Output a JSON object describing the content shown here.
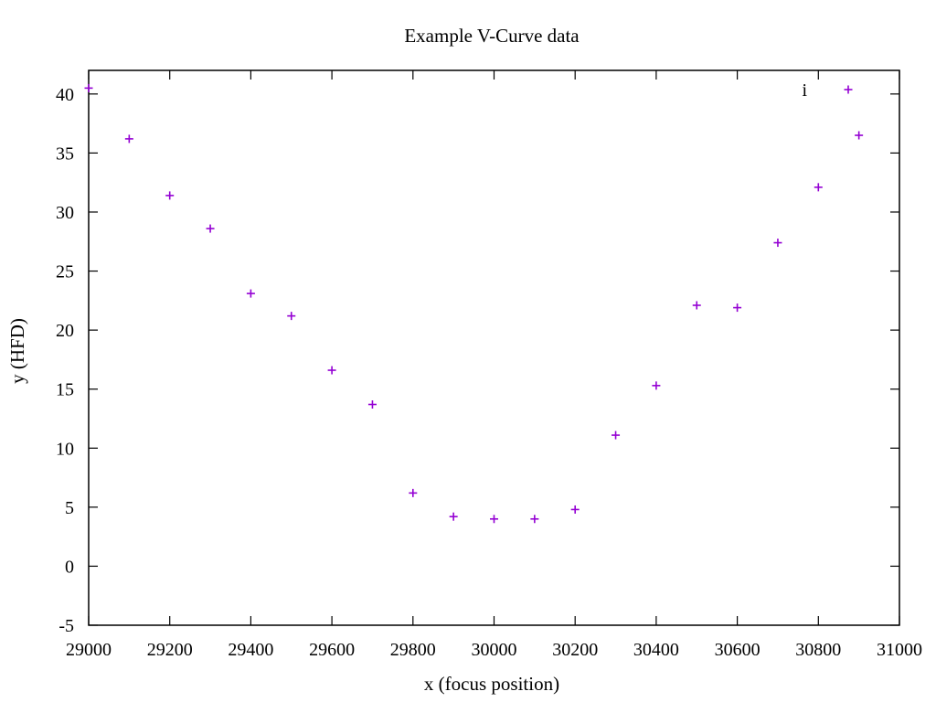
{
  "chart_data": {
    "type": "scatter",
    "title": "Example V-Curve data",
    "xlabel": "x (focus position)",
    "ylabel": "y (HFD)",
    "xlim": [
      29000,
      31000
    ],
    "ylim": [
      -5,
      42
    ],
    "xticks": [
      29000,
      29200,
      29400,
      29600,
      29800,
      30000,
      30200,
      30400,
      30600,
      30800,
      31000
    ],
    "yticks": [
      -5,
      0,
      5,
      10,
      15,
      20,
      25,
      30,
      35,
      40
    ],
    "grid": false,
    "legend": {
      "position": "top-right",
      "label": "i"
    },
    "marker_color": "#9400d3",
    "series": [
      {
        "marker": "plus",
        "x": [
          29000,
          29100,
          29200,
          29300,
          29400,
          29500,
          29600,
          29700,
          29800,
          29900,
          30000,
          30100,
          30200,
          30300,
          30400,
          30500,
          30600,
          30700,
          30800,
          30900
        ],
        "y": [
          40.5,
          36.2,
          31.4,
          28.6,
          23.1,
          21.2,
          16.6,
          13.7,
          6.2,
          4.2,
          4.0,
          4.0,
          4.8,
          11.1,
          15.3,
          22.1,
          21.9,
          27.4,
          32.1,
          36.5
        ]
      }
    ]
  }
}
